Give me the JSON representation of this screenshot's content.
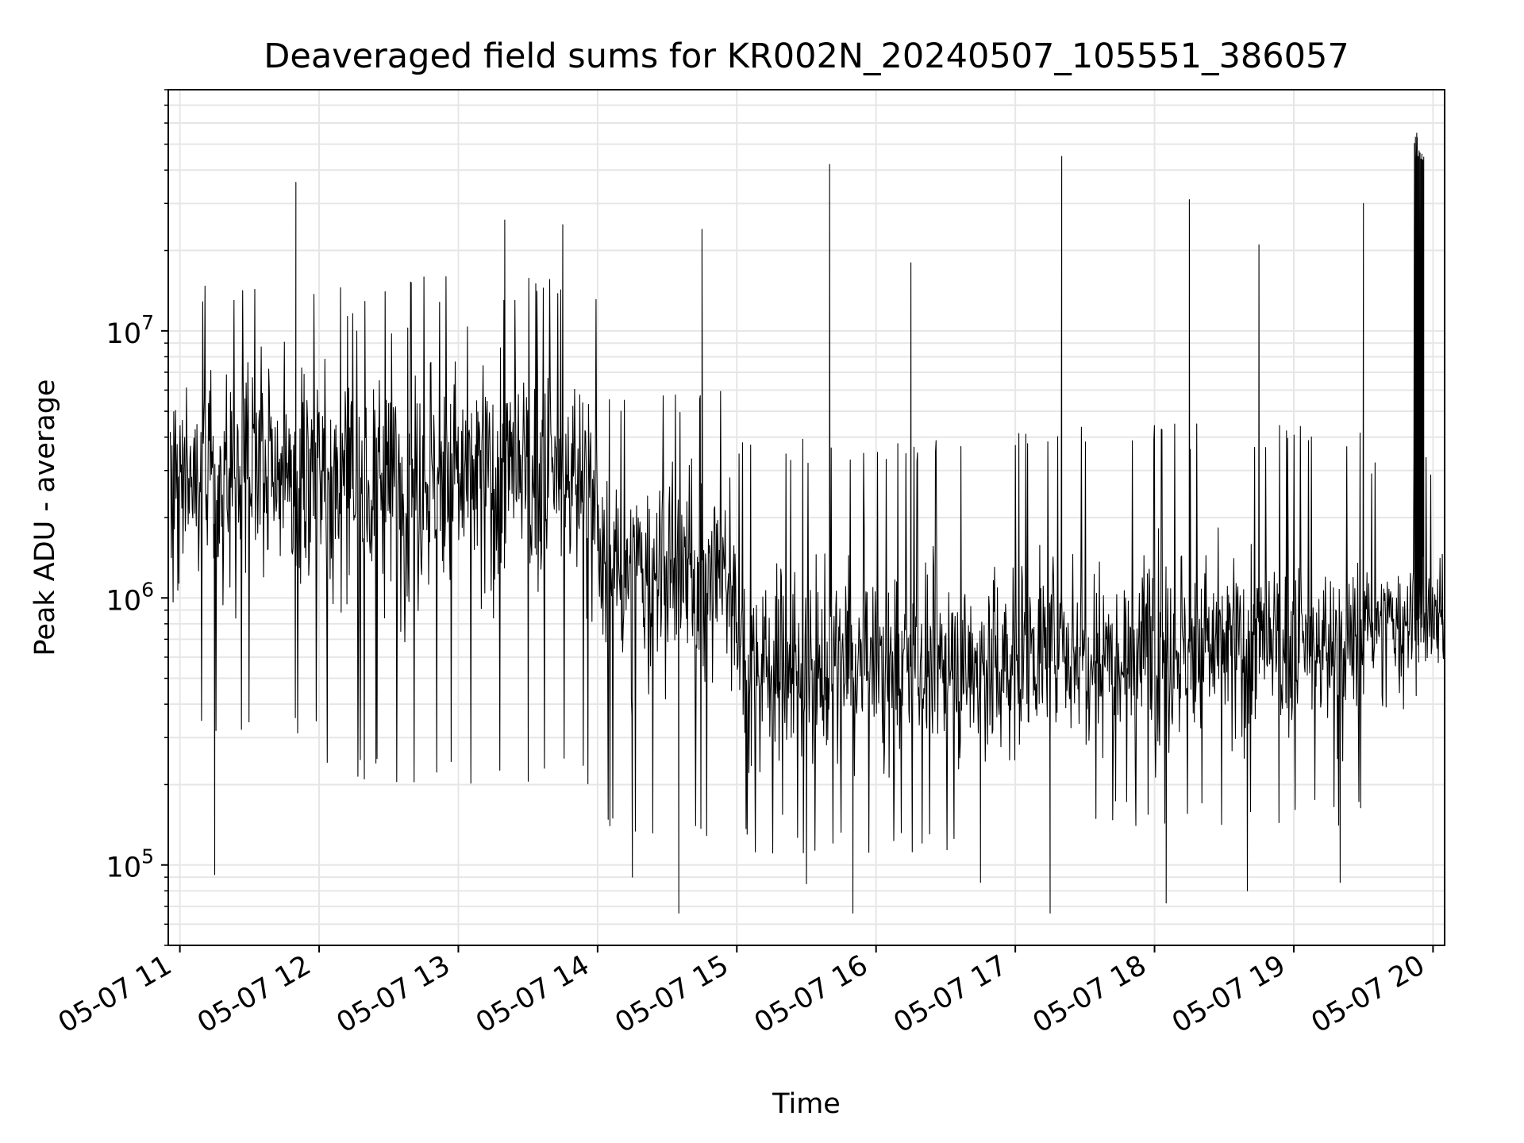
{
  "chart_data": {
    "type": "line",
    "title": "Deaveraged field sums for KR002N_20240507_105551_386057",
    "xlabel": "Time",
    "ylabel": "Peak ADU - average",
    "x_start": "2024-05-07T10:55:51",
    "x_end": "2024-05-07T20:05:00",
    "xlim": [
      "2024-05-07T10:55:00",
      "2024-05-07T20:05:00"
    ],
    "x_ticks": [
      {
        "time": "2024-05-07T11:00:00",
        "label": "05-07 11"
      },
      {
        "time": "2024-05-07T12:00:00",
        "label": "05-07 12"
      },
      {
        "time": "2024-05-07T13:00:00",
        "label": "05-07 13"
      },
      {
        "time": "2024-05-07T14:00:00",
        "label": "05-07 14"
      },
      {
        "time": "2024-05-07T15:00:00",
        "label": "05-07 15"
      },
      {
        "time": "2024-05-07T16:00:00",
        "label": "05-07 16"
      },
      {
        "time": "2024-05-07T17:00:00",
        "label": "05-07 17"
      },
      {
        "time": "2024-05-07T18:00:00",
        "label": "05-07 18"
      },
      {
        "time": "2024-05-07T19:00:00",
        "label": "05-07 19"
      },
      {
        "time": "2024-05-07T20:00:00",
        "label": "05-07 20"
      }
    ],
    "y_scale": "log",
    "ylim": [
      50000,
      80000000
    ],
    "y_ticks": [
      {
        "value": 100000,
        "base": "10",
        "exp": "5"
      },
      {
        "value": 1000000,
        "base": "10",
        "exp": "6"
      },
      {
        "value": 10000000,
        "base": "10",
        "exp": "7"
      }
    ],
    "grid": true,
    "legend": "none",
    "line_color": "#000000",
    "grid_color": "#e6e6e6",
    "spike_points": [
      {
        "time": "2024-05-07T11:50:00",
        "value": 36000000
      },
      {
        "time": "2024-05-07T13:20:00",
        "value": 26000000
      },
      {
        "time": "2024-05-07T13:45:00",
        "value": 25000000
      },
      {
        "time": "2024-05-07T14:45:00",
        "value": 24000000
      },
      {
        "time": "2024-05-07T15:40:00",
        "value": 42000000
      },
      {
        "time": "2024-05-07T16:15:00",
        "value": 18000000
      },
      {
        "time": "2024-05-07T17:20:00",
        "value": 45000000
      },
      {
        "time": "2024-05-07T18:15:00",
        "value": 31000000
      },
      {
        "time": "2024-05-07T18:45:00",
        "value": 21000000
      },
      {
        "time": "2024-05-07T19:30:00",
        "value": 30000000
      },
      {
        "time": "2024-05-07T19:53:00",
        "value": 55000000
      }
    ],
    "dip_points": [
      {
        "time": "2024-05-07T11:15:00",
        "value": 92000
      },
      {
        "time": "2024-05-07T14:15:00",
        "value": 90000
      },
      {
        "time": "2024-05-07T14:35:00",
        "value": 66000
      },
      {
        "time": "2024-05-07T15:30:00",
        "value": 85000
      },
      {
        "time": "2024-05-07T15:50:00",
        "value": 66000
      },
      {
        "time": "2024-05-07T16:45:00",
        "value": 86000
      },
      {
        "time": "2024-05-07T17:15:00",
        "value": 66000
      },
      {
        "time": "2024-05-07T18:05:00",
        "value": 72000
      },
      {
        "time": "2024-05-07T18:40:00",
        "value": 80000
      },
      {
        "time": "2024-05-07T19:20:00",
        "value": 86000
      }
    ],
    "baseline_segments": [
      {
        "start": "2024-05-07T10:55:51",
        "end": "2024-05-07T12:00:00",
        "median": 3000000,
        "low": 300000,
        "high": 15000000
      },
      {
        "start": "2024-05-07T12:00:00",
        "end": "2024-05-07T14:00:00",
        "median": 2800000,
        "low": 200000,
        "high": 16000000
      },
      {
        "start": "2024-05-07T14:00:00",
        "end": "2024-05-07T15:00:00",
        "median": 1200000,
        "low": 120000,
        "high": 6000000
      },
      {
        "start": "2024-05-07T15:00:00",
        "end": "2024-05-07T17:00:00",
        "median": 550000,
        "low": 110000,
        "high": 4000000
      },
      {
        "start": "2024-05-07T17:00:00",
        "end": "2024-05-07T19:30:00",
        "median": 650000,
        "low": 140000,
        "high": 4500000
      },
      {
        "start": "2024-05-07T19:30:00",
        "end": "2024-05-07T20:05:00",
        "median": 800000,
        "low": 350000,
        "high": 3500000
      }
    ]
  }
}
